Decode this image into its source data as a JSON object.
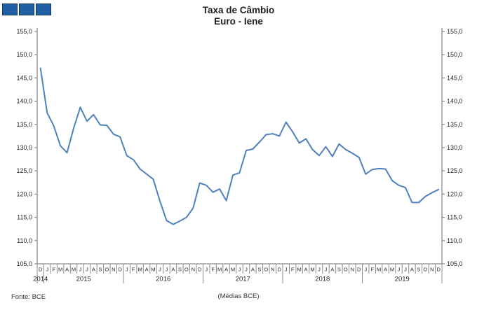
{
  "window": {
    "background": "#ffffff"
  },
  "logo": {
    "fill": "#1f5fa3",
    "border": "#16365c",
    "block_count": 3
  },
  "header": {
    "title": "Taxa de Câmbio",
    "subtitle": "Euro - Iene"
  },
  "footer": {
    "source": "Fonte: BCE",
    "note": "(Médias BCE)"
  },
  "chart_data": {
    "type": "line",
    "title": "Taxa de Câmbio",
    "subtitle": "Euro - Iene",
    "xlabel": "",
    "ylabel": "",
    "ylim": [
      105,
      155
    ],
    "ytick_step": 5,
    "ytick_labels": [
      "105,0",
      "110,0",
      "115,0",
      "120,0",
      "125,0",
      "130,0",
      "135,0",
      "140,0",
      "145,0",
      "150,0",
      "155,0"
    ],
    "grid": false,
    "legend": "none",
    "axis_color": "#8c8c8c",
    "text_color": "#262626",
    "x_month_labels": [
      "D",
      "J",
      "F",
      "M",
      "A",
      "M",
      "J",
      "J",
      "A",
      "S",
      "O",
      "N",
      "D",
      "J",
      "F",
      "M",
      "A",
      "M",
      "J",
      "J",
      "A",
      "S",
      "O",
      "N",
      "D",
      "J",
      "F",
      "M",
      "A",
      "M",
      "J",
      "J",
      "A",
      "S",
      "O",
      "N",
      "D",
      "J",
      "F",
      "M",
      "A",
      "M",
      "J",
      "J",
      "A",
      "S",
      "O",
      "N",
      "D",
      "J",
      "F",
      "M",
      "A",
      "M",
      "J",
      "J",
      "A",
      "S",
      "O",
      "N",
      "D"
    ],
    "x_years": [
      {
        "label": "2014",
        "months": 1
      },
      {
        "label": "2015",
        "months": 12
      },
      {
        "label": "2016",
        "months": 12
      },
      {
        "label": "2017",
        "months": 12
      },
      {
        "label": "2018",
        "months": 12
      },
      {
        "label": "2019",
        "months": 12
      }
    ],
    "series": [
      {
        "name": "Euro - Iene",
        "color": "#4f81bd",
        "values": [
          147.1,
          137.5,
          134.7,
          130.4,
          128.9,
          134.2,
          138.7,
          135.7,
          137.1,
          134.9,
          134.8,
          132.9,
          132.3,
          128.3,
          127.4,
          125.4,
          124.3,
          123.2,
          118.5,
          114.3,
          113.5,
          114.2,
          115.0,
          117.0,
          122.4,
          121.9,
          120.4,
          121.1,
          118.6,
          124.1,
          124.6,
          129.4,
          129.7,
          131.2,
          132.8,
          133.0,
          132.5,
          135.5,
          133.4,
          131.0,
          131.9,
          129.6,
          128.3,
          130.2,
          128.1,
          130.8,
          129.6,
          128.8,
          127.9,
          124.3,
          125.3,
          125.5,
          125.4,
          122.9,
          121.9,
          121.4,
          118.2,
          118.2,
          119.5,
          120.3,
          121.0
        ]
      }
    ]
  }
}
